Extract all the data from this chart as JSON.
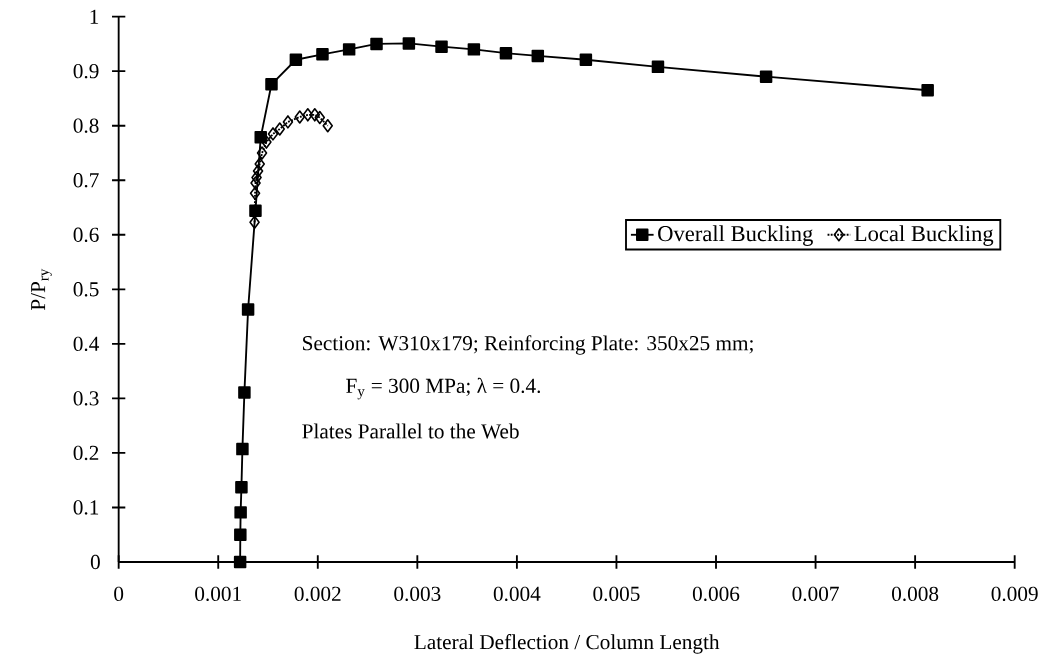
{
  "chart_data": {
    "type": "line",
    "xlabel": "Lateral Deflection / Column Length",
    "ylabel": "P/P$_{ry}$",
    "xlim": [
      0,
      0.009
    ],
    "ylim": [
      0,
      1
    ],
    "xticks": [
      0,
      0.001,
      0.002,
      0.003,
      0.004,
      0.005,
      0.006,
      0.007,
      0.008,
      0.009
    ],
    "yticks": [
      0,
      0.1,
      0.2,
      0.3,
      0.4,
      0.5,
      0.6,
      0.7,
      0.8,
      0.9,
      1
    ],
    "grid": false,
    "legend": "right",
    "series": [
      {
        "name": "Overall Buckling",
        "color": "#000000",
        "marker": "square",
        "line_style": "solid",
        "x": [
          0.00122,
          0.001222,
          0.001225,
          0.001233,
          0.001243,
          0.001263,
          0.0013,
          0.001374,
          0.001427,
          0.001535,
          0.00178,
          0.002047,
          0.002315,
          0.00259,
          0.002915,
          0.003243,
          0.003568,
          0.00389,
          0.00421,
          0.004693,
          0.005417,
          0.006503,
          0.008126
        ],
        "values": [
          0,
          0.05,
          0.091,
          0.137,
          0.207,
          0.311,
          0.463,
          0.644,
          0.779,
          0.876,
          0.921,
          0.931,
          0.94,
          0.95,
          0.951,
          0.945,
          0.94,
          0.933,
          0.928,
          0.921,
          0.908,
          0.89,
          0.865
        ]
      },
      {
        "name": "Local Buckling",
        "color": "#000000",
        "marker": "diamond",
        "line_style": "dotted",
        "x": [
          0.001365,
          0.00137,
          0.001375,
          0.001385,
          0.0014,
          0.001417,
          0.00144,
          0.001484,
          0.00155,
          0.001618,
          0.0017,
          0.001819,
          0.0019,
          0.00197,
          0.00202,
          0.0021
        ],
        "values": [
          0.623,
          0.676,
          0.695,
          0.705,
          0.717,
          0.73,
          0.75,
          0.77,
          0.785,
          0.794,
          0.807,
          0.816,
          0.82,
          0.82,
          0.815,
          0.8
        ]
      }
    ],
    "annotations": [
      "Section: W310x179;  Reinforcing Plate: 350x25 mm;",
      "F$_{y}$ = 300 MPa; λ = 0.4.",
      "Plates Parallel to the Web"
    ]
  }
}
